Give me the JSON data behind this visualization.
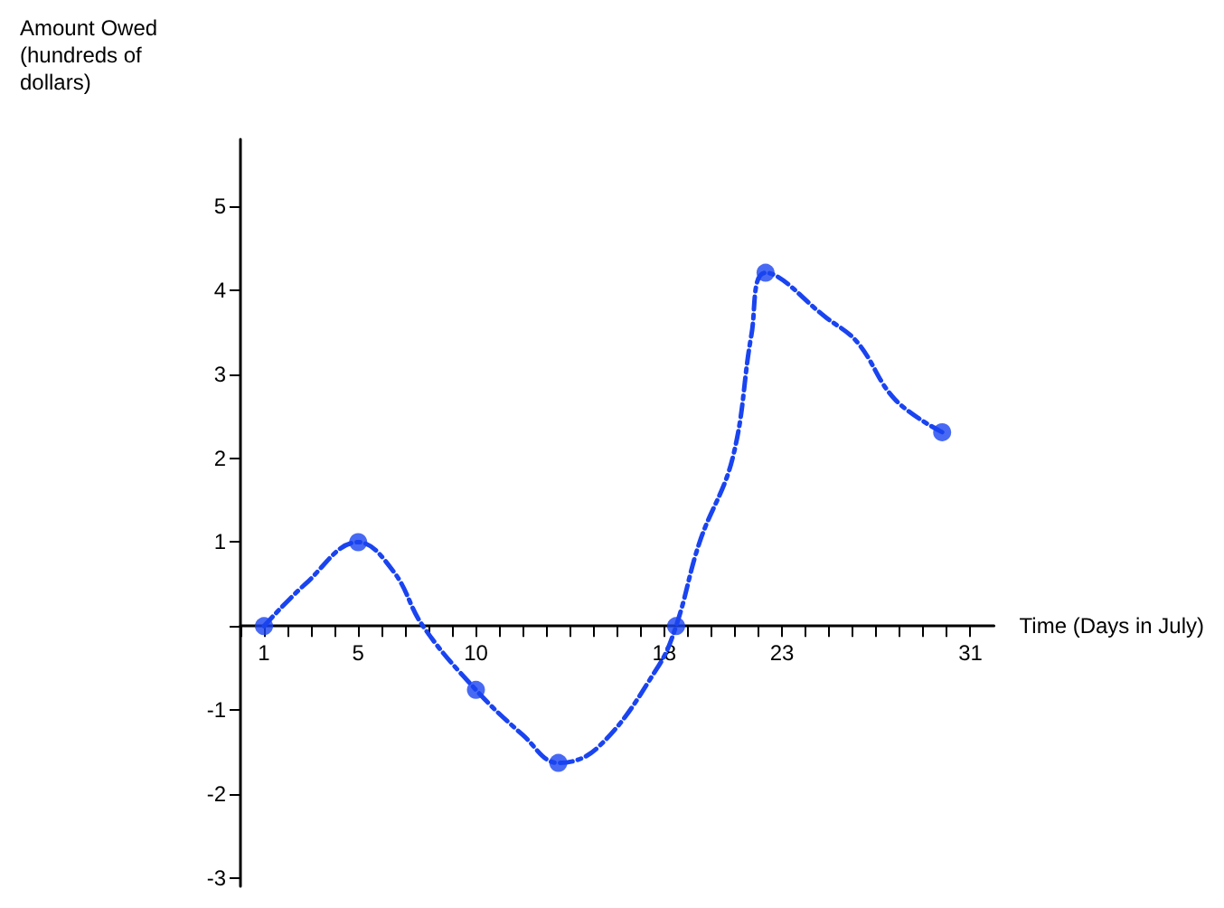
{
  "chart_data": {
    "type": "line",
    "ylabel": "Amount Owed\n(hundreds of\ndollars)",
    "xlabel": "Time (Days in July)",
    "series": [
      {
        "color": "#1a44f0",
        "line_style": "dashed",
        "marker": "none",
        "x": [
          1,
          2.75,
          5,
          6.5,
          7.75,
          10,
          12,
          13.5,
          15.2,
          17.7,
          18.5,
          19.5,
          20.9,
          21.7,
          22.3,
          24.9,
          26.2,
          27.8,
          29.8
        ],
        "values": [
          0,
          0.5,
          1,
          0.65,
          0,
          -0.76,
          -1.3,
          -1.63,
          -1.44,
          -0.5,
          0,
          1,
          2,
          3.47,
          4.21,
          3.67,
          3.38,
          2.7,
          2.31
        ]
      },
      {
        "type": "scatter",
        "color": "#1a44f0",
        "marker": "circle",
        "x": [
          1,
          5,
          10,
          13.5,
          18.5,
          22.3,
          29.8
        ],
        "values": [
          0,
          1,
          -0.76,
          -1.63,
          0,
          4.21,
          2.31
        ]
      }
    ],
    "xlim": [
      0,
      32
    ],
    "ylim": [
      -3.1,
      5.8
    ],
    "xticks": [
      {
        "value": 0,
        "label": null
      },
      1,
      {
        "value": 2,
        "label": null
      },
      {
        "value": 3,
        "label": null
      },
      {
        "value": 4,
        "label": null
      },
      5,
      {
        "value": 6,
        "label": null
      },
      {
        "value": 7,
        "label": null
      },
      {
        "value": 8,
        "label": null
      },
      {
        "value": 9,
        "label": null
      },
      10,
      {
        "value": 11,
        "label": null
      },
      {
        "value": 12,
        "label": null
      },
      {
        "value": 13,
        "label": null
      },
      {
        "value": 14,
        "label": null
      },
      {
        "value": 15,
        "label": null
      },
      {
        "value": 16,
        "label": null
      },
      {
        "value": 17,
        "label": null
      },
      18,
      {
        "value": 19,
        "label": null
      },
      {
        "value": 20,
        "label": null
      },
      {
        "value": 21,
        "label": null
      },
      {
        "value": 22,
        "label": null
      },
      23,
      {
        "value": 24,
        "label": null
      },
      {
        "value": 25,
        "label": null
      },
      {
        "value": 26,
        "label": null
      },
      {
        "value": 27,
        "label": null
      },
      {
        "value": 28,
        "label": null
      },
      {
        "value": 29,
        "label": null
      },
      {
        "value": 30,
        "label": null
      },
      31
    ],
    "yticks": [
      -3,
      -2,
      -1,
      {
        "value": 0,
        "label": null
      },
      1,
      2,
      3,
      4,
      5
    ],
    "grid": false
  }
}
